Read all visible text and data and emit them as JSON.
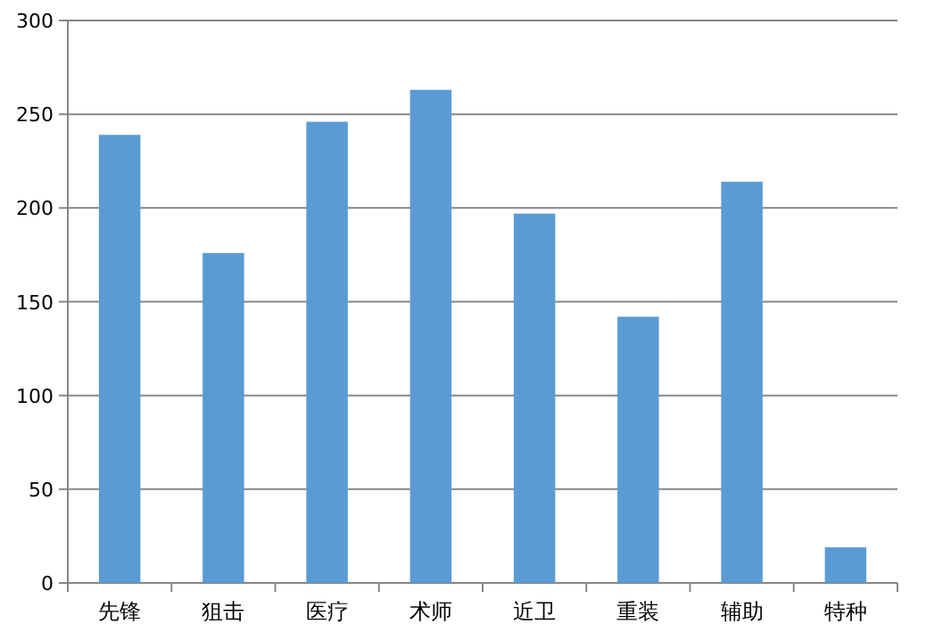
{
  "chart_data": {
    "type": "bar",
    "categories": [
      "先锋",
      "狙击",
      "医疗",
      "术师",
      "近卫",
      "重装",
      "辅助",
      "特种"
    ],
    "values": [
      239,
      176,
      246,
      263,
      197,
      142,
      214,
      19
    ],
    "color": "#5b9bd5",
    "ylim": [
      0,
      300
    ],
    "yticks": [
      0,
      50,
      100,
      150,
      200,
      250,
      300
    ],
    "grid": "y"
  }
}
